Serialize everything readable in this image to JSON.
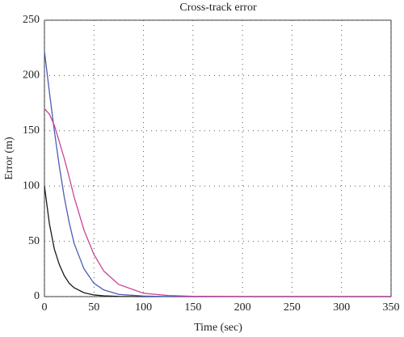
{
  "chart_data": {
    "type": "line",
    "title": "Cross-track error",
    "xlabel": "Time (sec)",
    "ylabel": "Error (m)",
    "x": [
      0,
      5,
      10,
      15,
      20,
      25,
      30,
      40,
      50,
      60,
      75,
      100,
      125,
      150,
      200,
      250,
      300,
      350
    ],
    "series": [
      {
        "color": "#1a1a1a",
        "values": [
          100,
          66,
          43,
          29,
          19,
          12,
          8,
          3.5,
          1.5,
          0.7,
          0.2,
          0,
          0,
          0,
          0,
          0,
          0,
          0
        ]
      },
      {
        "color": "#4a5db5",
        "values": [
          222,
          185,
          150,
          118,
          90,
          67,
          48,
          25,
          12,
          6,
          2,
          0.5,
          0,
          0,
          0,
          0,
          0,
          0
        ]
      },
      {
        "color": "#c8429a",
        "values": [
          170,
          165,
          155,
          140,
          125,
          108,
          90,
          60,
          38,
          23,
          11,
          3,
          1,
          0.3,
          0,
          0,
          0,
          0
        ]
      }
    ],
    "xlim": [
      0,
      350
    ],
    "xticks": [
      0,
      50,
      100,
      150,
      200,
      250,
      300,
      350
    ],
    "ylim": [
      0,
      250
    ],
    "yticks": [
      0,
      50,
      100,
      150,
      200,
      250
    ],
    "grid": true
  }
}
